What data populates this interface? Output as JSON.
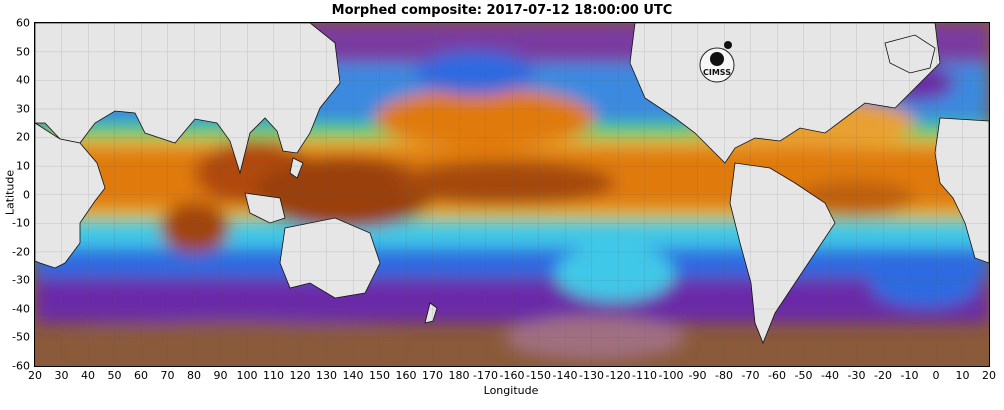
{
  "title": "Morphed composite: 2017-07-12 18:00:00 UTC",
  "x_axis": {
    "label": "Longitude",
    "ticks": [
      "20",
      "30",
      "40",
      "50",
      "60",
      "70",
      "80",
      "90",
      "100",
      "110",
      "120",
      "130",
      "140",
      "150",
      "160",
      "170",
      "180",
      "-170",
      "-160",
      "-150",
      "-140",
      "-130",
      "-120",
      "-110",
      "-100",
      "-90",
      "-80",
      "-70",
      "-60",
      "-50",
      "-40",
      "-30",
      "-20",
      "-10",
      "0",
      "10",
      "20"
    ]
  },
  "y_axis": {
    "label": "Latitude",
    "ticks": [
      "60",
      "50",
      "40",
      "30",
      "20",
      "10",
      "0",
      "-10",
      "-20",
      "-30",
      "-40",
      "-50",
      "-60"
    ]
  },
  "logo": {
    "text": "CIMSS"
  },
  "map": {
    "type": "global precipitable water composite",
    "projection": "equirectangular",
    "lon_range": [
      20,
      380
    ],
    "lat_range": [
      -60,
      60
    ],
    "grid": true,
    "land_color": "#e6e6e6",
    "colors": {
      "very_moist": "#8c3a08",
      "moist": "#e07a10",
      "warm": "#f0a030",
      "mid": "#e8d040",
      "green": "#50d070",
      "cyan": "#40d0e8",
      "blue": "#2f6ae0",
      "violet": "#6a2aa8",
      "dry_purple": "#a07080",
      "dry_brown": "#8a5a3a"
    }
  }
}
